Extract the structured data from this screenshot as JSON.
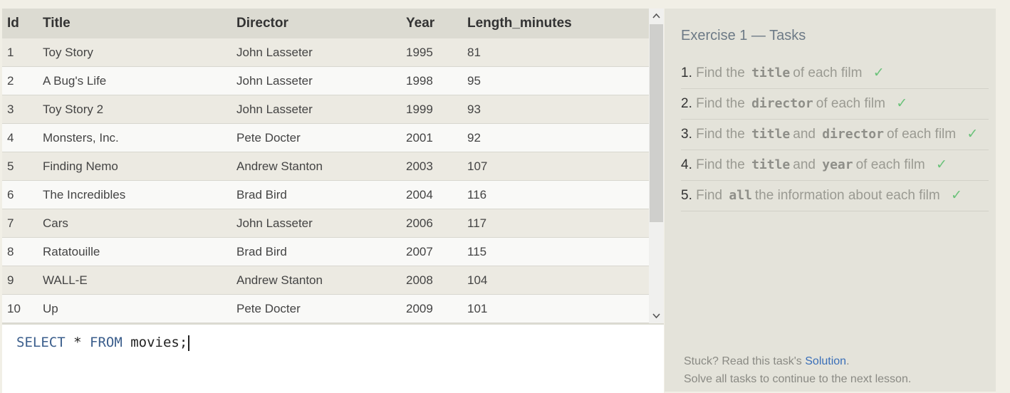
{
  "table": {
    "headers": [
      "Id",
      "Title",
      "Director",
      "Year",
      "Length_minutes"
    ],
    "rows": [
      [
        "1",
        "Toy Story",
        "John Lasseter",
        "1995",
        "81"
      ],
      [
        "2",
        "A Bug's Life",
        "John Lasseter",
        "1998",
        "95"
      ],
      [
        "3",
        "Toy Story 2",
        "John Lasseter",
        "1999",
        "93"
      ],
      [
        "4",
        "Monsters, Inc.",
        "Pete Docter",
        "2001",
        "92"
      ],
      [
        "5",
        "Finding Nemo",
        "Andrew Stanton",
        "2003",
        "107"
      ],
      [
        "6",
        "The Incredibles",
        "Brad Bird",
        "2004",
        "116"
      ],
      [
        "7",
        "Cars",
        "John Lasseter",
        "2006",
        "117"
      ],
      [
        "8",
        "Ratatouille",
        "Brad Bird",
        "2007",
        "115"
      ],
      [
        "9",
        "WALL-E",
        "Andrew Stanton",
        "2008",
        "104"
      ],
      [
        "10",
        "Up",
        "Pete Docter",
        "2009",
        "101"
      ]
    ]
  },
  "scrollbar": {
    "up_icon": "chevron-up-icon",
    "down_icon": "chevron-down-icon"
  },
  "editor": {
    "kw_select": "SELECT",
    "star": "*",
    "kw_from": "FROM",
    "table_name": "movies;"
  },
  "exercise": {
    "title": "Exercise 1 — Tasks",
    "tasks": [
      {
        "num": "1.",
        "parts": [
          "Find the",
          "title",
          "of each film"
        ],
        "done": true
      },
      {
        "num": "2.",
        "parts": [
          "Find the",
          "director",
          "of each film"
        ],
        "done": true
      },
      {
        "num": "3.",
        "parts": [
          "Find the",
          "title",
          "and",
          "director",
          "of each film"
        ],
        "done": true
      },
      {
        "num": "4.",
        "parts": [
          "Find the",
          "title",
          "and",
          "year",
          "of each film"
        ],
        "done": true
      },
      {
        "num": "5.",
        "parts": [
          "Find",
          "all",
          "the information about each film"
        ],
        "done": true
      }
    ],
    "check_mark": "✓",
    "colors": {
      "check": "#6bc27a",
      "link": "#3a6fb8"
    }
  },
  "footer": {
    "stuck_prefix": "Stuck? Read this task's",
    "solution_link": "Solution",
    "stuck_suffix": ".",
    "continue_text": "Solve all tasks to continue to the next lesson."
  }
}
